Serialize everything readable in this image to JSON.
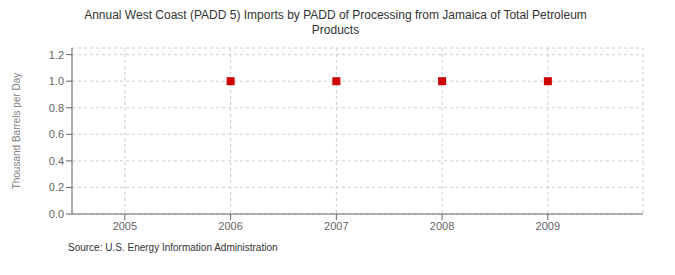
{
  "chart_data": {
    "type": "scatter",
    "title": "Annual West Coast (PADD 5) Imports by PADD of Processing from Jamaica of Total Petroleum\nProducts",
    "ylabel": "Thousand Barrels per Day",
    "source": "Source: U.S. Energy Information Administration",
    "x": [
      2005,
      2006,
      2007,
      2008,
      2009
    ],
    "values": [
      null,
      1.0,
      1.0,
      1.0,
      1.0
    ],
    "xlim": [
      2004.5,
      2009.9
    ],
    "ylim": [
      0.0,
      1.25
    ],
    "xticks": [
      2005,
      2006,
      2007,
      2008,
      2009
    ],
    "yticks": [
      {
        "value": 0.0,
        "label": "0.0"
      },
      0.2,
      0.4,
      0.6,
      0.8,
      {
        "value": 1.0,
        "label": "1.0"
      },
      1.2
    ],
    "color": "#CC0000",
    "marker": "square",
    "grid": true
  }
}
